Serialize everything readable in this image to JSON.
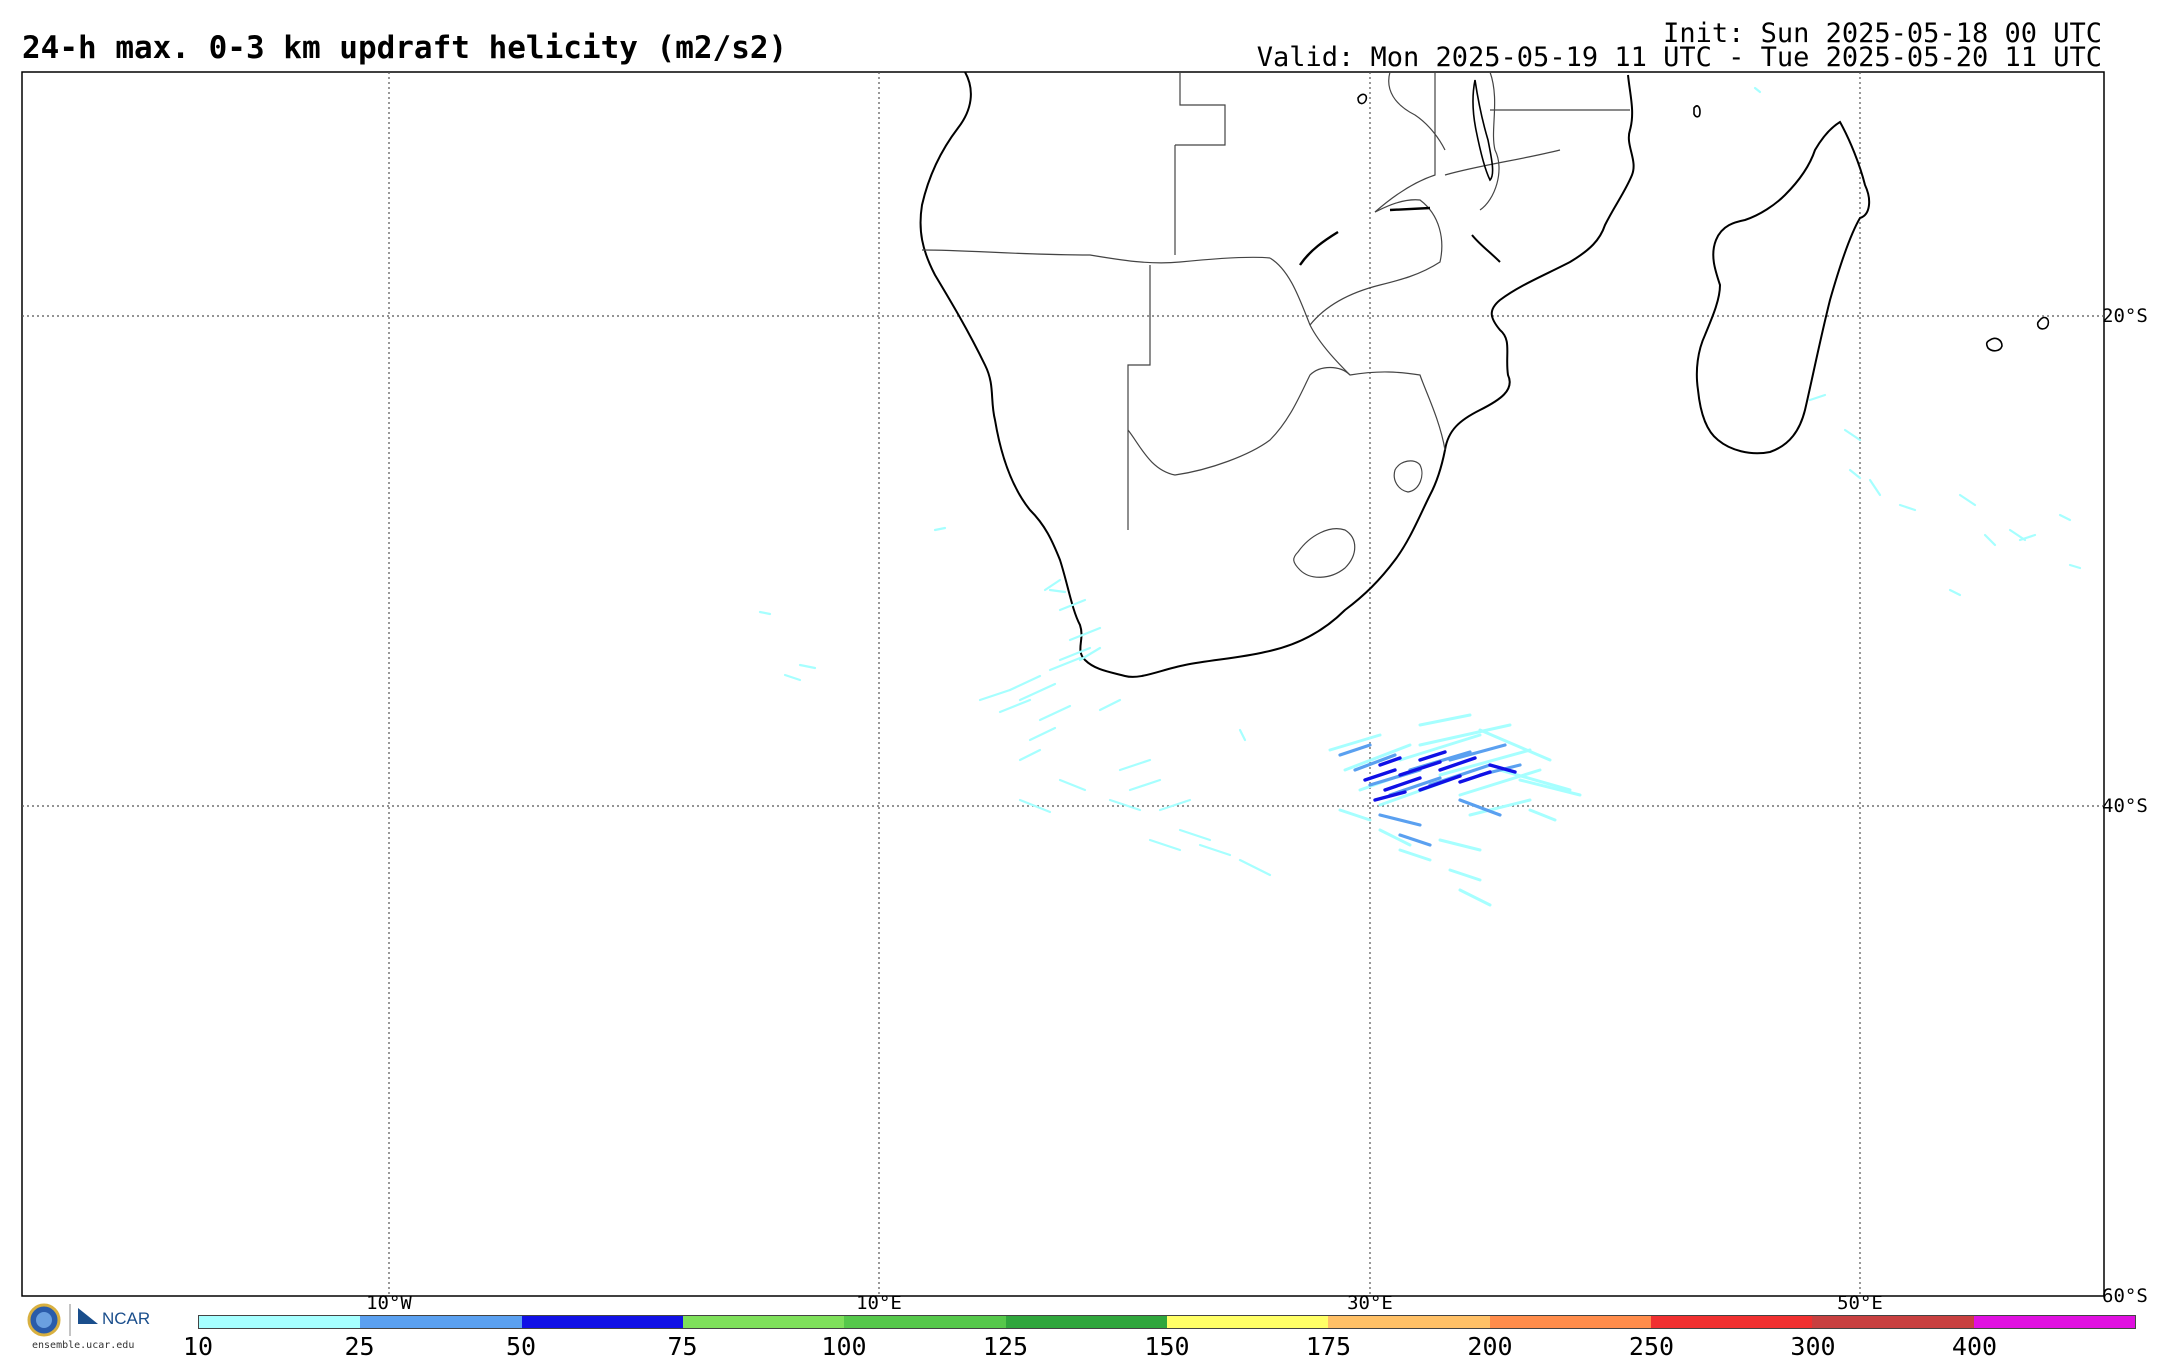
{
  "header": {
    "title": "24-h max. 0-3 km updraft helicity (m2/s2)",
    "init": "Init: Sun 2025-05-18 00 UTC",
    "valid": "Valid: Mon 2025-05-19 11 UTC - Tue 2025-05-20 11 UTC"
  },
  "map": {
    "region": "Southern Africa / South Atlantic / SW Indian Ocean",
    "lat_labels": [
      "20°S",
      "40°S",
      "60°S"
    ],
    "lon_labels": [
      "10°W",
      "10°E",
      "30°E",
      "50°E"
    ],
    "gridlines": "dotted"
  },
  "colorbar": {
    "ticks": [
      "10",
      "25",
      "50",
      "75",
      "100",
      "125",
      "150",
      "175",
      "200",
      "250",
      "300",
      "400"
    ],
    "colors": [
      "#a6ffff",
      "#5aa0f0",
      "#1010e6",
      "#7ee05a",
      "#55c84a",
      "#2fa63c",
      "#ffff66",
      "#ffc066",
      "#ff8c4a",
      "#f03030",
      "#c84040",
      "#e010e0"
    ]
  },
  "logo": {
    "text": "NCAR",
    "caption": "ensemble.ucar.edu"
  }
}
